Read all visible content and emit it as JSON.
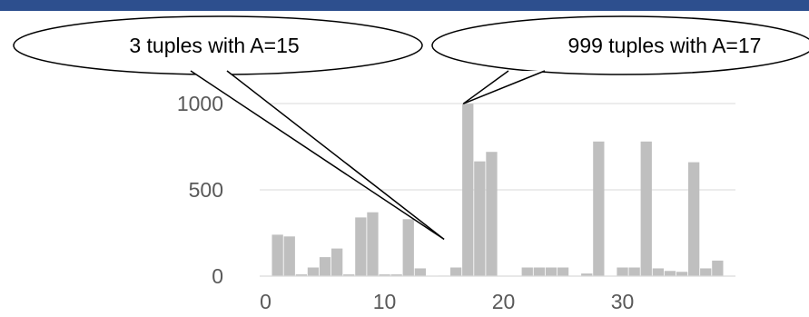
{
  "chart_data": {
    "type": "bar",
    "title": "",
    "xlabel": "",
    "ylabel": "",
    "x": [
      0,
      1,
      2,
      3,
      4,
      5,
      6,
      7,
      8,
      9,
      10,
      11,
      12,
      13,
      14,
      15,
      16,
      17,
      18,
      19,
      20,
      21,
      22,
      23,
      24,
      25,
      26,
      27,
      28,
      29,
      30,
      31,
      32,
      33,
      34,
      35,
      36,
      37,
      38,
      39
    ],
    "values": [
      0,
      240,
      230,
      10,
      50,
      110,
      160,
      10,
      340,
      370,
      10,
      10,
      330,
      45,
      0,
      3,
      50,
      999,
      665,
      720,
      0,
      0,
      50,
      50,
      50,
      50,
      0,
      15,
      780,
      0,
      50,
      50,
      780,
      45,
      30,
      25,
      660,
      45,
      90,
      0
    ],
    "xticks": [
      0,
      10,
      20,
      30
    ],
    "yticks": [
      0,
      500,
      1000
    ],
    "xlim": [
      0,
      39
    ],
    "ylim": [
      0,
      1000
    ],
    "grid": true,
    "bar_color": "#bfbfbf",
    "grid_color": "#d9d9d9",
    "annotations": [
      {
        "text": "3 tuples with A=15",
        "x": 15,
        "y": 3
      },
      {
        "text": "999 tuples with A=17",
        "x": 17,
        "y": 999
      }
    ]
  },
  "header": {
    "bar_color": "#2d4f8e"
  }
}
